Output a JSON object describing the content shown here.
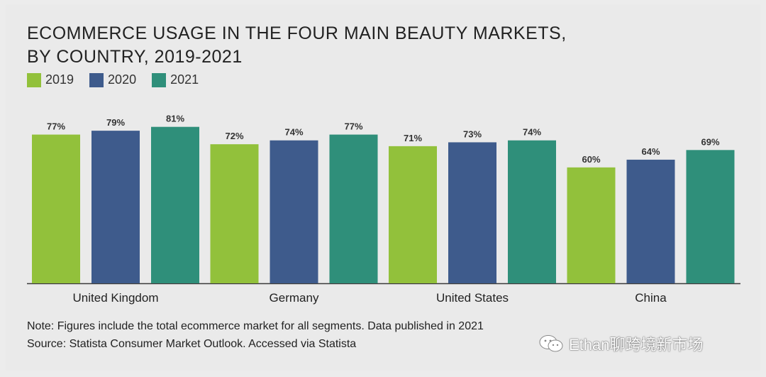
{
  "title_lines": [
    "ECOMMERCE USAGE IN THE FOUR MAIN BEAUTY MARKETS,",
    "BY COUNTRY, 2019-2021"
  ],
  "legend": [
    {
      "label": "2019",
      "color": "#92c13b"
    },
    {
      "label": "2020",
      "color": "#3e5b8c"
    },
    {
      "label": "2021",
      "color": "#2f8f7a"
    }
  ],
  "chart_data": {
    "type": "bar",
    "categories": [
      "United Kingdom",
      "Germany",
      "United States",
      "China"
    ],
    "series": [
      {
        "name": "2019",
        "values": [
          77,
          72,
          71,
          60
        ],
        "labels": [
          "77%",
          "72%",
          "71%",
          "60%"
        ]
      },
      {
        "name": "2020",
        "values": [
          79,
          74,
          73,
          64
        ],
        "labels": [
          "79%",
          "74%",
          "73%",
          "64%"
        ]
      },
      {
        "name": "2021",
        "values": [
          81,
          77,
          74,
          69
        ],
        "labels": [
          "81%",
          "77%",
          "74%",
          "69%"
        ]
      }
    ],
    "title": "ECOMMERCE USAGE IN THE FOUR MAIN BEAUTY MARKETS, BY COUNTRY, 2019-2021",
    "xlabel": "",
    "ylabel": "",
    "ylim": [
      0,
      100
    ],
    "grid": false,
    "legend_position": "top-left"
  },
  "notes": {
    "note": "Note: Figures include the total ecommerce market for all segments. Data published in 2021",
    "source": "Source: Statista Consumer Market Outlook. Accessed via Statista"
  },
  "watermark": {
    "text": "Ethan聊跨境新市场",
    "icon": "wechat-icon"
  }
}
